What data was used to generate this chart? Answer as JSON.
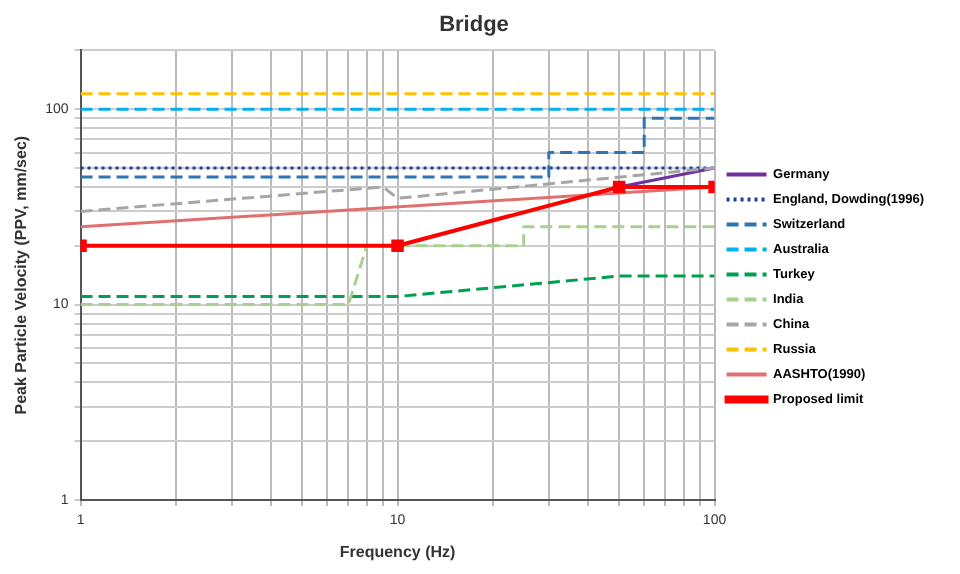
{
  "chart_data": {
    "type": "line",
    "title": "Bridge",
    "xlabel": "Frequency (Hz)",
    "ylabel": "Peak Particle Velocity (PPV, mm/sec)",
    "log": "xy",
    "grid": true,
    "legend": "right",
    "marker": "none",
    "xlim": [
      1,
      100
    ],
    "xticks": [
      1,
      {
        "value": 2,
        "label": null
      },
      {
        "value": 3,
        "label": null
      },
      {
        "value": 4,
        "label": null
      },
      {
        "value": 5,
        "label": null
      },
      {
        "value": 6,
        "label": null
      },
      {
        "value": 7,
        "label": null
      },
      {
        "value": 8,
        "label": null
      },
      {
        "value": 9,
        "label": null
      },
      10,
      {
        "value": 20,
        "label": null
      },
      {
        "value": 30,
        "label": null
      },
      {
        "value": 40,
        "label": null
      },
      {
        "value": 50,
        "label": null
      },
      {
        "value": 60,
        "label": null
      },
      {
        "value": 70,
        "label": null
      },
      {
        "value": 80,
        "label": null
      },
      {
        "value": 90,
        "label": null
      },
      100
    ],
    "ylim": [
      1,
      200
    ],
    "yticks": [
      1,
      {
        "value": 2,
        "label": null
      },
      {
        "value": 3,
        "label": null
      },
      {
        "value": 4,
        "label": null
      },
      {
        "value": 5,
        "label": null
      },
      {
        "value": 6,
        "label": null
      },
      {
        "value": 7,
        "label": null
      },
      {
        "value": 8,
        "label": null
      },
      {
        "value": 9,
        "label": null
      },
      10,
      {
        "value": 20,
        "label": null
      },
      {
        "value": 30,
        "label": null
      },
      {
        "value": 40,
        "label": null
      },
      {
        "value": 50,
        "label": null
      },
      {
        "value": 60,
        "label": null
      },
      {
        "value": 70,
        "label": null
      },
      {
        "value": 80,
        "label": null
      },
      {
        "value": 90,
        "label": null
      },
      100,
      {
        "value": 200,
        "label": null
      }
    ],
    "series": [
      {
        "name": "Germany",
        "color": "#7030a0",
        "line_style": "solid",
        "x": [
          50,
          100
        ],
        "values": [
          40,
          50
        ]
      },
      {
        "name": "England, Dowding(1996)",
        "color": "#1f3f99",
        "line_style": "dotted",
        "x": [
          1,
          100
        ],
        "values": [
          50,
          50
        ]
      },
      {
        "name": "Switzerland",
        "color": "#2e75b6",
        "line_style": "dashed",
        "x": [
          1,
          30,
          30,
          60,
          60,
          100
        ],
        "values": [
          45,
          45,
          60,
          60,
          90,
          90
        ]
      },
      {
        "name": "Australia",
        "color": "#00b0f0",
        "line_style": "dashed",
        "x": [
          1,
          100
        ],
        "values": [
          100,
          100
        ]
      },
      {
        "name": "Turkey",
        "color": "#00a050",
        "line_style": "dashed",
        "x": [
          1,
          10,
          50,
          100
        ],
        "values": [
          11,
          11,
          14,
          14
        ]
      },
      {
        "name": "India",
        "color": "#a9d18e",
        "line_style": "dashed",
        "x": [
          1,
          7,
          8,
          25,
          25,
          100
        ],
        "values": [
          10,
          10,
          20,
          20,
          25,
          25
        ]
      },
      {
        "name": "China",
        "color": "#a6a6a6",
        "line_style": "dashed",
        "x": [
          1,
          9,
          10,
          100
        ],
        "values": [
          30,
          40,
          35,
          50
        ]
      },
      {
        "name": "Russia",
        "color": "#ffc000",
        "line_style": "dashed",
        "x": [
          1,
          100
        ],
        "values": [
          120,
          120
        ]
      },
      {
        "name": "AASHTO(1990)",
        "color": "#e07070",
        "line_style": "solid",
        "x": [
          1,
          100
        ],
        "values": [
          25,
          40
        ]
      },
      {
        "name": "Proposed limit",
        "color": "#ff0000",
        "line_style": "solid",
        "marker": "square",
        "x": [
          1,
          10,
          50,
          100
        ],
        "values": [
          20,
          20,
          40,
          40
        ]
      }
    ]
  }
}
